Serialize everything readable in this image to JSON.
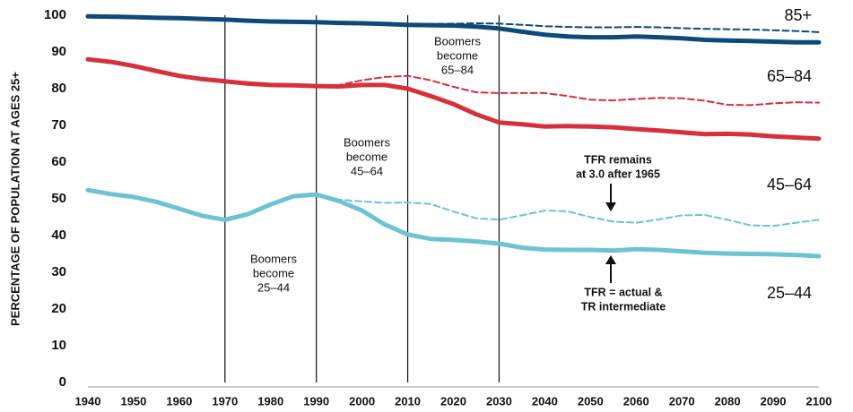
{
  "chart_data": {
    "type": "line",
    "y_label": "PERCENTAGE OF POPULATION AT AGES 25+",
    "x": [
      1940,
      1945,
      1950,
      1955,
      1960,
      1965,
      1970,
      1975,
      1980,
      1985,
      1990,
      1995,
      2000,
      2005,
      2010,
      2015,
      2020,
      2025,
      2030,
      2035,
      2040,
      2045,
      2050,
      2055,
      2060,
      2065,
      2070,
      2075,
      2080,
      2085,
      2090,
      2095,
      2100
    ],
    "xlim": [
      1940,
      2100
    ],
    "xticks": [
      1940,
      1950,
      1960,
      1970,
      1980,
      1990,
      2000,
      2010,
      2020,
      2030,
      2040,
      2050,
      2060,
      2070,
      2080,
      2090,
      2100
    ],
    "ylim": [
      0,
      100
    ],
    "yticks": [
      0,
      10,
      20,
      30,
      40,
      50,
      60,
      70,
      80,
      90,
      100
    ],
    "series": [
      {
        "color": "#0d4a7a",
        "dashed": false,
        "values": [
          99.7,
          99.6,
          99.5,
          99.3,
          99.2,
          99.0,
          98.8,
          98.5,
          98.3,
          98.2,
          98.1,
          97.9,
          97.8,
          97.6,
          97.4,
          97.3,
          97.2,
          96.9,
          96.4,
          95.5,
          94.7,
          94.2,
          94.0,
          94.0,
          94.2,
          94.0,
          93.7,
          93.3,
          93.1,
          93.0,
          92.8,
          92.6,
          92.6
        ]
      },
      {
        "color": "#0d4a7a",
        "dashed": true,
        "values": [
          null,
          null,
          null,
          null,
          null,
          null,
          null,
          null,
          null,
          null,
          null,
          null,
          null,
          null,
          97.4,
          97.6,
          97.7,
          97.8,
          97.7,
          97.4,
          97.0,
          96.8,
          96.7,
          96.7,
          96.8,
          96.7,
          96.5,
          96.3,
          96.2,
          96.1,
          95.9,
          95.7,
          95.4
        ]
      },
      {
        "color": "#d6303a",
        "dashed": false,
        "values": [
          88.0,
          87.3,
          86.2,
          84.8,
          83.5,
          82.6,
          82.0,
          81.4,
          81.0,
          80.9,
          80.7,
          80.6,
          81.0,
          81.0,
          80.0,
          78.0,
          75.8,
          73.0,
          70.8,
          70.3,
          69.7,
          69.8,
          69.7,
          69.5,
          69.0,
          68.6,
          68.1,
          67.6,
          67.7,
          67.5,
          67.0,
          66.7,
          66.4
        ]
      },
      {
        "color": "#d6303a",
        "dashed": true,
        "values": [
          null,
          null,
          null,
          null,
          null,
          null,
          null,
          null,
          null,
          null,
          80.7,
          81.0,
          82.3,
          83.2,
          83.5,
          82.3,
          80.5,
          79.0,
          78.8,
          78.8,
          78.8,
          78.0,
          77.0,
          76.8,
          77.2,
          77.5,
          77.4,
          76.7,
          75.6,
          75.5,
          76.0,
          76.3,
          76.2
        ]
      },
      {
        "color": "#6dc3d3",
        "dashed": false,
        "values": [
          52.4,
          51.3,
          50.5,
          49.2,
          47.3,
          45.4,
          44.3,
          45.8,
          48.5,
          50.7,
          51.2,
          49.4,
          46.8,
          43.0,
          40.3,
          39.1,
          38.8,
          38.4,
          37.8,
          36.7,
          36.2,
          36.1,
          36.1,
          35.9,
          36.3,
          36.1,
          35.7,
          35.3,
          35.1,
          35.0,
          34.9,
          34.7,
          34.4
        ]
      },
      {
        "color": "#6dc3d3",
        "dashed": true,
        "values": [
          null,
          null,
          null,
          null,
          null,
          null,
          null,
          null,
          null,
          null,
          51.2,
          49.8,
          49.3,
          48.9,
          49.0,
          48.6,
          46.5,
          44.7,
          44.3,
          45.5,
          46.8,
          46.6,
          45.0,
          43.8,
          43.5,
          44.4,
          45.5,
          45.6,
          44.3,
          42.8,
          42.6,
          43.5,
          44.3
        ]
      }
    ],
    "vlines": [
      1970,
      1990,
      2010,
      2030
    ],
    "group_labels": [
      "85+",
      "65–84",
      "45–64",
      "25–44"
    ],
    "annotations": [
      {
        "text": [
          "Boomers",
          "become",
          "25–44"
        ]
      },
      {
        "text": [
          "Boomers",
          "become",
          "45–64"
        ]
      },
      {
        "text": [
          "Boomers",
          "become",
          "65–84"
        ]
      },
      {
        "text": [
          "TFR remains",
          "at 3.0 after 1965"
        ]
      },
      {
        "text": [
          "TFR = actual &",
          "TR intermediate"
        ]
      }
    ]
  }
}
